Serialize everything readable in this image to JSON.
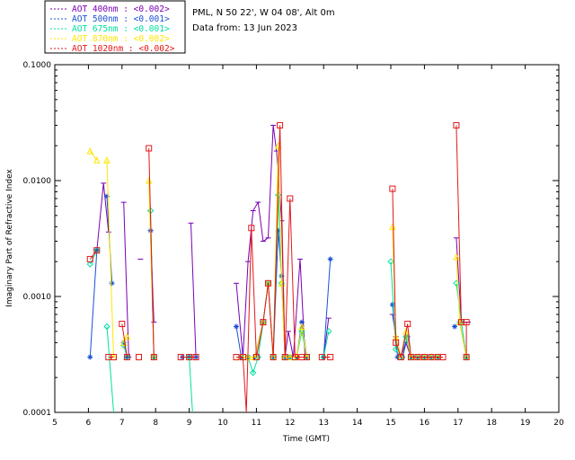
{
  "chart_data": {
    "type": "line",
    "xlabel": "Time (GMT)",
    "ylabel": "Imaginary Part of Refractive Index",
    "xlim": [
      5,
      20
    ],
    "ylim": [
      0.0001,
      0.1
    ],
    "yscale": "log",
    "x_ticks": [
      "5",
      "6",
      "7",
      "8",
      "9",
      "10",
      "11",
      "12",
      "13",
      "14",
      "15",
      "16",
      "17",
      "18",
      "19",
      "20"
    ],
    "y_ticks": [
      {
        "value": 0.1,
        "label": "0.1000"
      },
      {
        "value": 0.01,
        "label": "0.0100"
      },
      {
        "value": 0.001,
        "label": "0.0010"
      },
      {
        "value": 0.0001,
        "label": "0.0001"
      }
    ],
    "info_lines": [
      "PML, N 50 22', W 04 08', Alt 0m",
      "Data from: 13 Jun 2023"
    ],
    "series": [
      {
        "name": "AOT  400nm : <0.002>",
        "color": "#7a00b4",
        "marker": "dash",
        "segments": [
          [
            [
              6.25,
              0.0025
            ],
            [
              6.45,
              0.0095
            ],
            [
              6.6,
              0.0036
            ]
          ],
          [
            [
              7.05,
              0.0065
            ],
            [
              7.2,
              0.0003
            ]
          ],
          [
            [
              7.55,
              0.0021
            ]
          ],
          [
            [
              7.85,
              0.0037
            ],
            [
              7.95,
              0.0006
            ]
          ],
          [
            [
              9.05,
              0.0043
            ],
            [
              9.2,
              0.0003
            ]
          ],
          [
            [
              10.4,
              0.0013
            ],
            [
              10.6,
              0.0003
            ],
            [
              10.75,
              0.002
            ],
            [
              10.9,
              0.0055
            ],
            [
              11.05,
              0.0065
            ],
            [
              11.2,
              0.003
            ],
            [
              11.35,
              0.0032
            ],
            [
              11.5,
              0.03
            ],
            [
              11.6,
              0.018
            ],
            [
              11.75,
              0.0045
            ],
            [
              11.85,
              0.0003
            ],
            [
              11.95,
              0.0005
            ],
            [
              12.1,
              0.0003
            ],
            [
              12.3,
              0.0021
            ],
            [
              12.45,
              0.0003
            ]
          ],
          [
            [
              13.0,
              0.0003
            ],
            [
              13.15,
              0.00065
            ]
          ],
          [
            [
              15.05,
              0.0007
            ],
            [
              15.15,
              0.00045
            ],
            [
              15.3,
              0.0003
            ],
            [
              15.45,
              0.0004
            ],
            [
              15.6,
              0.0003
            ],
            [
              15.8,
              0.0003
            ],
            [
              16.0,
              0.0003
            ],
            [
              16.2,
              0.0003
            ],
            [
              16.4,
              0.0003
            ]
          ],
          [
            [
              16.95,
              0.0032
            ],
            [
              17.1,
              0.0006
            ],
            [
              17.3,
              0.0006
            ]
          ]
        ]
      },
      {
        "name": "AOT  500nm : <0.001>",
        "color": "#1a4fd6",
        "marker": "star",
        "segments": [
          [
            [
              6.05,
              0.0003
            ],
            [
              6.25,
              0.0025
            ]
          ],
          [
            [
              6.55,
              0.0073
            ],
            [
              6.7,
              0.0013
            ]
          ],
          [
            [
              7.05,
              0.0004
            ],
            [
              7.15,
              0.0003
            ]
          ],
          [
            [
              7.85,
              0.0037
            ],
            [
              7.95,
              0.0003
            ]
          ],
          [
            [
              8.8,
              0.0003
            ],
            [
              9.0,
              0.0003
            ],
            [
              9.2,
              0.0003
            ]
          ],
          [
            [
              10.4,
              0.00055
            ],
            [
              10.55,
              0.0003
            ],
            [
              10.75,
              0.0003
            ],
            [
              10.95,
              0.0003
            ],
            [
              11.2,
              0.0006
            ],
            [
              11.35,
              0.0013
            ],
            [
              11.5,
              0.0003
            ],
            [
              11.65,
              0.0037
            ],
            [
              11.75,
              0.0015
            ],
            [
              11.85,
              0.0003
            ],
            [
              12.0,
              0.0003
            ],
            [
              12.2,
              0.0003
            ],
            [
              12.35,
              0.0006
            ],
            [
              12.5,
              0.0003
            ]
          ],
          [
            [
              13.0,
              0.0003
            ],
            [
              13.2,
              0.0021
            ]
          ],
          [
            [
              15.05,
              0.00085
            ],
            [
              15.2,
              0.0003
            ],
            [
              15.35,
              0.0003
            ],
            [
              15.5,
              0.00045
            ],
            [
              15.6,
              0.0003
            ],
            [
              15.8,
              0.0003
            ],
            [
              16.0,
              0.0003
            ],
            [
              16.2,
              0.0003
            ],
            [
              16.4,
              0.0003
            ]
          ],
          [
            [
              16.9,
              0.00055
            ],
            [
              17.05,
              0.0006
            ],
            [
              17.25,
              0.0003
            ]
          ]
        ]
      },
      {
        "name": "AOT  675nm : <0.001>",
        "color": "#00e0a0",
        "marker": "diamond",
        "segments": [
          [
            [
              6.05,
              0.0019
            ],
            [
              6.25,
              0.0025
            ]
          ],
          [
            [
              6.55,
              0.00055
            ],
            [
              6.75,
              0.0001
            ]
          ],
          [
            [
              7.05,
              0.00038
            ],
            [
              7.15,
              0.0003
            ]
          ],
          [
            [
              7.85,
              0.0055
            ],
            [
              7.95,
              0.0003
            ]
          ],
          [
            [
              9.0,
              0.0003
            ],
            [
              9.1,
              0.0001
            ]
          ],
          [
            [
              10.55,
              0.0003
            ],
            [
              10.75,
              0.0003
            ],
            [
              10.9,
              0.00022
            ],
            [
              11.05,
              0.0003
            ],
            [
              11.2,
              0.0006
            ],
            [
              11.35,
              0.0013
            ],
            [
              11.5,
              0.0003
            ],
            [
              11.65,
              0.0075
            ],
            [
              11.75,
              0.0013
            ],
            [
              11.85,
              0.0003
            ],
            [
              12.0,
              0.0003
            ],
            [
              12.2,
              0.0003
            ],
            [
              12.35,
              0.0005
            ],
            [
              12.5,
              0.0003
            ]
          ],
          [
            [
              13.0,
              0.0003
            ],
            [
              13.15,
              0.0005
            ]
          ],
          [
            [
              15.0,
              0.002
            ],
            [
              15.15,
              0.00035
            ],
            [
              15.3,
              0.0003
            ],
            [
              15.45,
              0.00045
            ],
            [
              15.6,
              0.0003
            ],
            [
              15.8,
              0.0003
            ],
            [
              16.0,
              0.0003
            ],
            [
              16.2,
              0.0003
            ],
            [
              16.4,
              0.0003
            ]
          ],
          [
            [
              16.95,
              0.0013
            ],
            [
              17.1,
              0.0006
            ],
            [
              17.25,
              0.0003
            ]
          ]
        ]
      },
      {
        "name": "AOT  870nm : <0.002>",
        "color": "#ffe600",
        "marker": "triangle",
        "segments": [
          [
            [
              6.05,
              0.018
            ],
            [
              6.25,
              0.015
            ]
          ],
          [
            [
              6.55,
              0.015
            ],
            [
              6.75,
              0.0003
            ]
          ],
          [
            [
              7.05,
              0.0004
            ],
            [
              7.15,
              0.00045
            ]
          ],
          [
            [
              7.8,
              0.01
            ],
            [
              7.95,
              0.0003
            ]
          ],
          [
            [
              10.55,
              0.0003
            ],
            [
              10.75,
              0.0003
            ],
            [
              10.95,
              0.0003
            ],
            [
              11.2,
              0.0006
            ],
            [
              11.35,
              0.0013
            ],
            [
              11.5,
              0.0003
            ],
            [
              11.65,
              0.02
            ],
            [
              11.75,
              0.0013
            ],
            [
              11.85,
              0.0003
            ],
            [
              12.0,
              0.0003
            ],
            [
              12.2,
              0.0003
            ],
            [
              12.35,
              0.00055
            ],
            [
              12.5,
              0.0003
            ]
          ],
          [
            [
              15.05,
              0.004
            ],
            [
              15.15,
              0.00045
            ],
            [
              15.3,
              0.0003
            ],
            [
              15.45,
              0.0005
            ],
            [
              15.6,
              0.0003
            ],
            [
              15.8,
              0.0003
            ],
            [
              16.0,
              0.0003
            ],
            [
              16.2,
              0.0003
            ],
            [
              16.4,
              0.0003
            ]
          ],
          [
            [
              16.95,
              0.0022
            ],
            [
              17.05,
              0.0006
            ],
            [
              17.25,
              0.0003
            ]
          ]
        ]
      },
      {
        "name": "AOT 1020nm : <0.002>",
        "color": "#e21818",
        "marker": "square",
        "segments": [
          [
            [
              6.05,
              0.0021
            ],
            [
              6.25,
              0.0025
            ]
          ],
          [
            [
              6.6,
              0.0003
            ],
            [
              6.75,
              0.0003
            ]
          ],
          [
            [
              7.0,
              0.00058
            ],
            [
              7.15,
              0.0003
            ]
          ],
          [
            [
              7.5,
              0.0003
            ]
          ],
          [
            [
              7.8,
              0.019
            ],
            [
              7.95,
              0.0003
            ]
          ],
          [
            [
              8.75,
              0.0003
            ],
            [
              9.0,
              0.0003
            ],
            [
              9.2,
              0.0003
            ]
          ],
          [
            [
              10.4,
              0.0003
            ],
            [
              10.6,
              0.0003
            ],
            [
              10.7,
              0.0001
            ],
            [
              10.85,
              0.0039
            ],
            [
              11.0,
              0.0003
            ],
            [
              11.2,
              0.0006
            ],
            [
              11.35,
              0.0013
            ],
            [
              11.5,
              0.0003
            ],
            [
              11.7,
              0.03
            ],
            [
              11.85,
              0.0003
            ],
            [
              12.0,
              0.007
            ],
            [
              12.15,
              0.0003
            ],
            [
              12.35,
              0.0003
            ],
            [
              12.5,
              0.0003
            ]
          ],
          [
            [
              12.95,
              0.0003
            ],
            [
              13.2,
              0.0003
            ]
          ],
          [
            [
              15.05,
              0.0085
            ],
            [
              15.15,
              0.0004
            ],
            [
              15.3,
              0.0003
            ],
            [
              15.5,
              0.00058
            ],
            [
              15.6,
              0.0003
            ],
            [
              15.8,
              0.0003
            ],
            [
              16.0,
              0.0003
            ],
            [
              16.2,
              0.0003
            ],
            [
              16.4,
              0.0003
            ],
            [
              16.55,
              0.0003
            ]
          ],
          [
            [
              16.95,
              0.03
            ],
            [
              17.1,
              0.0006
            ],
            [
              17.25,
              0.0006
            ],
            [
              17.25,
              0.0003
            ]
          ]
        ]
      }
    ]
  }
}
